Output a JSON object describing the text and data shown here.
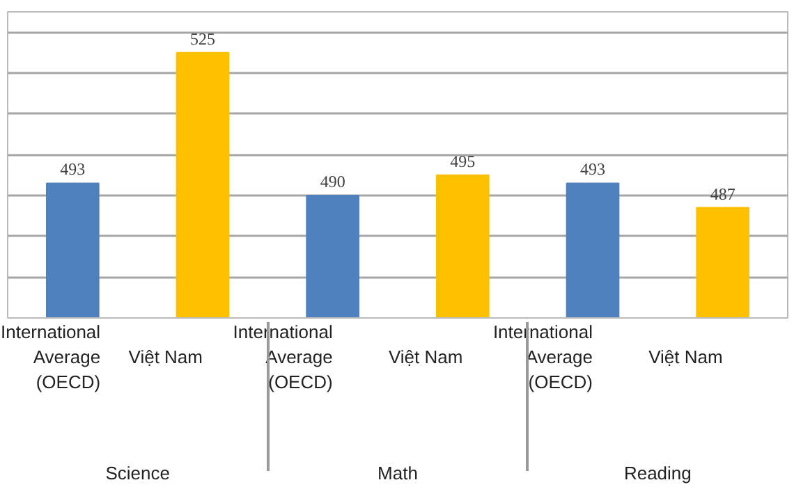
{
  "chart_data": {
    "type": "bar",
    "categories": [
      "Science",
      "Math",
      "Reading"
    ],
    "series": [
      {
        "name": "International Average (OECD)",
        "color": "#4f81bd",
        "values": [
          493,
          490,
          493
        ]
      },
      {
        "name": "Việt Nam",
        "color": "#ffc000",
        "values": [
          525,
          495,
          487
        ]
      }
    ],
    "ylim": [
      460,
      535
    ],
    "yticks": [
      {
        "value": 460,
        "label": null
      },
      {
        "value": 470,
        "label": null
      },
      {
        "value": 480,
        "label": null
      },
      {
        "value": 490,
        "label": null
      },
      {
        "value": 500,
        "label": null
      },
      {
        "value": 510,
        "label": null
      },
      {
        "value": 520,
        "label": null
      },
      {
        "value": 530,
        "label": null
      }
    ],
    "grid": "y",
    "tick_labels": "x",
    "data_labels": true
  }
}
